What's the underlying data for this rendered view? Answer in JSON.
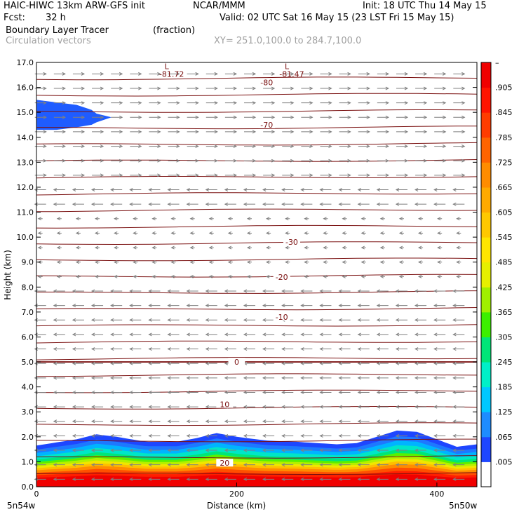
{
  "header": {
    "model": "HAIC-HIWC 13km ARW-GFS init",
    "org": "NCAR/MMM",
    "init": "Init: 18 UTC Thu 14 May 15",
    "fcst_label": "Fcst:",
    "fcst_value": "32 h",
    "valid": "Valid: 02 UTC Sat 16 May 15 (23 LST Fri 15 May 15)",
    "field": "Boundary Layer Tracer",
    "units": "(fraction)",
    "vectors": "Circulation vectors",
    "xy": "XY= 251.0,100.0 to 284.7,100.0"
  },
  "colors": {
    "contour": "#7a1010",
    "vector": "#808080",
    "low_blue": "#1f5cff"
  },
  "chart_data": {
    "type": "heatmap",
    "title": "Boundary Layer Tracer",
    "units": "(fraction)",
    "xlabel": "Distance (km)",
    "ylabel": "Height (km)",
    "xlim": [
      0,
      440
    ],
    "ylim": [
      0,
      17
    ],
    "x_ticks": [
      {
        "value": 0,
        "label": "0"
      },
      {
        "value": 200,
        "label": "200"
      },
      {
        "value": 400,
        "label": "400"
      }
    ],
    "x_end_labels": {
      "left": "5n54w",
      "right": "5n50w"
    },
    "y_ticks": [
      0.0,
      1.0,
      2.0,
      3.0,
      4.0,
      5.0,
      6.0,
      7.0,
      8.0,
      9.0,
      10.0,
      11.0,
      12.0,
      13.0,
      14.0,
      15.0,
      16.0,
      17.0
    ],
    "y_tick_labels": [
      "0.0",
      "1.0",
      "2.0",
      "3.0",
      "4.0",
      "5.0",
      "6.0",
      "7.0",
      "8.0",
      "9.0",
      "10.0",
      "11.0",
      "12.0",
      "13.0",
      "14.0",
      "15.0",
      "16.0",
      "17.0"
    ],
    "colorbar": {
      "labels": [
        ".005",
        ".065",
        ".125",
        ".185",
        ".245",
        ".305",
        ".365",
        ".425",
        ".485",
        ".545",
        ".605",
        ".665",
        ".725",
        ".785",
        ".845",
        ".905",
        "–"
      ],
      "colors": [
        "#ffffff",
        "#1e46ff",
        "#1e8cff",
        "#00c8ff",
        "#00f0c8",
        "#00e678",
        "#3cf000",
        "#a0f000",
        "#e6f000",
        "#ffe600",
        "#ffc800",
        "#ffaa00",
        "#ff8c00",
        "#ff6400",
        "#ff3c00",
        "#ff1400",
        "#f00000"
      ]
    },
    "temperature_contour_labels": [
      {
        "label": "-80",
        "x": 230,
        "y": 16.2
      },
      {
        "label": "-70",
        "x": 230,
        "y": 14.5
      },
      {
        "label": "-30",
        "x": 255,
        "y": 9.8
      },
      {
        "label": "-20",
        "x": 245,
        "y": 8.4
      },
      {
        "label": "-10",
        "x": 245,
        "y": 6.8
      },
      {
        "label": "0",
        "x": 200,
        "y": 5.0
      },
      {
        "label": "10",
        "x": 188,
        "y": 3.3
      },
      {
        "label": "20",
        "x": 188,
        "y": 0.95
      }
    ],
    "minima": [
      {
        "marker": "L",
        "value": "-81.72",
        "x": 135,
        "y": 16.7
      },
      {
        "marker": "L",
        "value": "-81.47",
        "x": 255,
        "y": 16.7
      }
    ],
    "boundary_layer_top_km": {
      "x": [
        0,
        40,
        60,
        80,
        110,
        140,
        160,
        180,
        200,
        230,
        260,
        300,
        320,
        340,
        360,
        380,
        400,
        420,
        440
      ],
      "y": [
        1.65,
        1.9,
        2.1,
        2.0,
        1.8,
        1.8,
        1.95,
        2.15,
        2.0,
        1.85,
        1.8,
        1.7,
        1.75,
        2.0,
        2.25,
        2.2,
        1.9,
        1.6,
        1.7
      ]
    },
    "upper_tracer_layer": {
      "x": [
        0,
        20,
        40,
        55,
        60,
        75
      ],
      "top_km": [
        15.5,
        15.4,
        15.3,
        15.1,
        14.95,
        14.8
      ],
      "bottom_km": [
        14.3,
        14.3,
        14.4,
        14.5,
        14.6,
        14.8
      ]
    },
    "grid": false,
    "legend": "colorbar-right"
  }
}
